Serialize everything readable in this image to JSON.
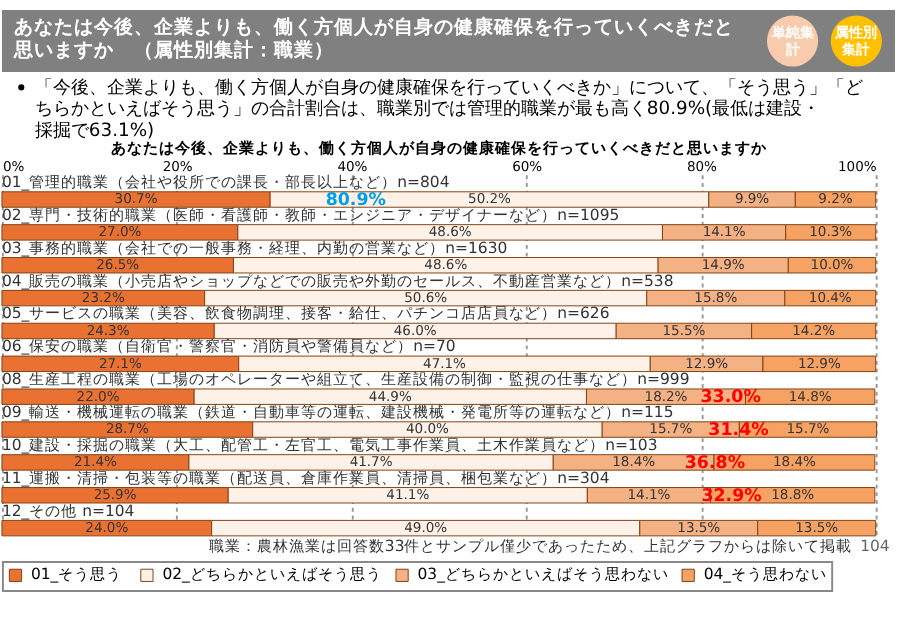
{
  "chart_data": {
    "type": "bar",
    "orientation": "horizontal",
    "stacked": true,
    "title": "あなたは今後、企業よりも、働く方個人が自身の健康確保を行っていくべきだと思いますか",
    "subtitle": "「今後、企業よりも、働く方個人が自身の健康確保を行っていくべきか」について、「そう思う」「どちらかといえばそう思う」の合計割合は、職業別では管理的職業が最も高く80.9%(最低は建設・採掘で63.1%)",
    "categories": [
      "01_管理的職業（会社や役所での課長・部長以上など）n=804",
      "02_専門・技術的職業（医師・看護師・教師・エンジニア・デザイナーなど）n=1095",
      "03_事務的職業（会社での一般事務・経理、内勤の営業など）n=1630",
      "04_販売の職業（小売店やショップなどでの販売や外勤のセールス、不動産営業など）n=538",
      "05_サービスの職業（美容、飲食物調理、接客・給仕、パチンコ店店員など）n=626",
      "06_保安の職業（自衛官・警察官・消防員や警備員など）n=70",
      "08_生産工程の職業（工場のオペレーターや組立て、生産設備の制御・監視の仕事など）n=999",
      "09_輸送・機械運転の職業（鉄道・自動車等の運転、建設機械・発電所等の運転など）n=115",
      "10_建設・採掘の職業（大工、配管工・左官工、電気工事作業員、土木作業員など）n=103",
      "11_運搬・清掃・包装等の職業（配送員、倉庫作業員、清掃員、梱包業など）n=304",
      "12_その他 n=104"
    ],
    "series": [
      {
        "name": "01_そう思う",
        "color": "#e97132",
        "values": [
          30.7,
          27.0,
          26.5,
          23.2,
          24.3,
          27.1,
          22.0,
          28.7,
          21.4,
          25.9,
          24.0
        ],
        "value_labels": [
          "30.7%",
          "27.0%",
          "26.5%",
          "23.2%",
          "24.3%",
          "27.1%",
          "22.0%",
          "28.7%",
          "21.4%",
          "25.9%",
          "24.0%"
        ]
      },
      {
        "name": "02_どちらかといえばそう思う",
        "color": "#fdf1e8",
        "values": [
          50.2,
          48.6,
          48.6,
          50.6,
          46.0,
          47.1,
          44.9,
          40.0,
          41.7,
          41.1,
          49.0
        ],
        "value_labels": [
          "50.2%",
          "48.6%",
          "48.6%",
          "50.6%",
          "46.0%",
          "47.1%",
          "44.9%",
          "40.0%",
          "41.7%",
          "41.1%",
          "49.0%"
        ]
      },
      {
        "name": "03_どちらかといえばそう思わない",
        "color": "#f4b183",
        "values": [
          9.9,
          14.1,
          14.9,
          15.8,
          15.5,
          12.9,
          18.2,
          15.7,
          18.4,
          14.1,
          13.5
        ],
        "value_labels": [
          "9.9%",
          "14.1%",
          "14.9%",
          "15.8%",
          "15.5%",
          "12.9%",
          "18.2%",
          "15.7%",
          "18.4%",
          "14.1%",
          "13.5%"
        ]
      },
      {
        "name": "04_そう思わない",
        "color": "#f5a262",
        "values": [
          9.2,
          10.3,
          10.0,
          10.4,
          14.2,
          12.9,
          14.8,
          15.7,
          18.4,
          18.8,
          13.5
        ],
        "value_labels": [
          "9.2%",
          "10.3%",
          "10.0%",
          "10.4%",
          "14.2%",
          "12.9%",
          "14.8%",
          "15.7%",
          "18.4%",
          "18.8%",
          "13.5%"
        ]
      }
    ],
    "xlim": [
      0,
      100
    ],
    "xticks": [
      {
        "value": 0,
        "label": "0%"
      },
      {
        "value": 20,
        "label": "20%"
      },
      {
        "value": 40,
        "label": "40%"
      },
      {
        "value": 60,
        "label": "60%"
      },
      {
        "value": 80,
        "label": "80%"
      },
      {
        "value": 100,
        "label": "100%"
      }
    ],
    "grid": "x",
    "legend": "bottom",
    "annotations": [
      "あなたは今後、企業よりも、働く方個人が自身の健康確保を行っていくべきだと思いますか　（属性別集計：職業）",
      "単純集計",
      "属性別集計",
      "職業：農林漁業は回答数33件とサンプル僅少であったため、上記グラフからは除いて掲載",
      "104",
      {
        "text": "80.9%",
        "x": 40.5,
        "y": "01_管理的職業（会社や役所での課長・部長以上など）n=804"
      },
      {
        "text": "33.0%",
        "x": 83.4,
        "y": "08_生産工程の職業（工場のオペレーターや組立て、生産設備の制御・監視の仕事など）n=999"
      },
      {
        "text": "31.4%",
        "x": 84.3,
        "y": "09_輸送・機械運転の職業（鉄道・自動車等の運転、建設機械・発電所等の運転など）n=115"
      },
      {
        "text": "36.8%",
        "x": 81.6,
        "y": "10_建設・採掘の職業（大工、配管工・左官工、電気工事作業員、土木作業員など）n=103"
      },
      {
        "text": "32.9%",
        "x": 83.5,
        "y": "11_運搬・清掃・包装等の職業（配送員、倉庫作業員、清掃員、梱包業など）n=304"
      }
    ]
  }
}
